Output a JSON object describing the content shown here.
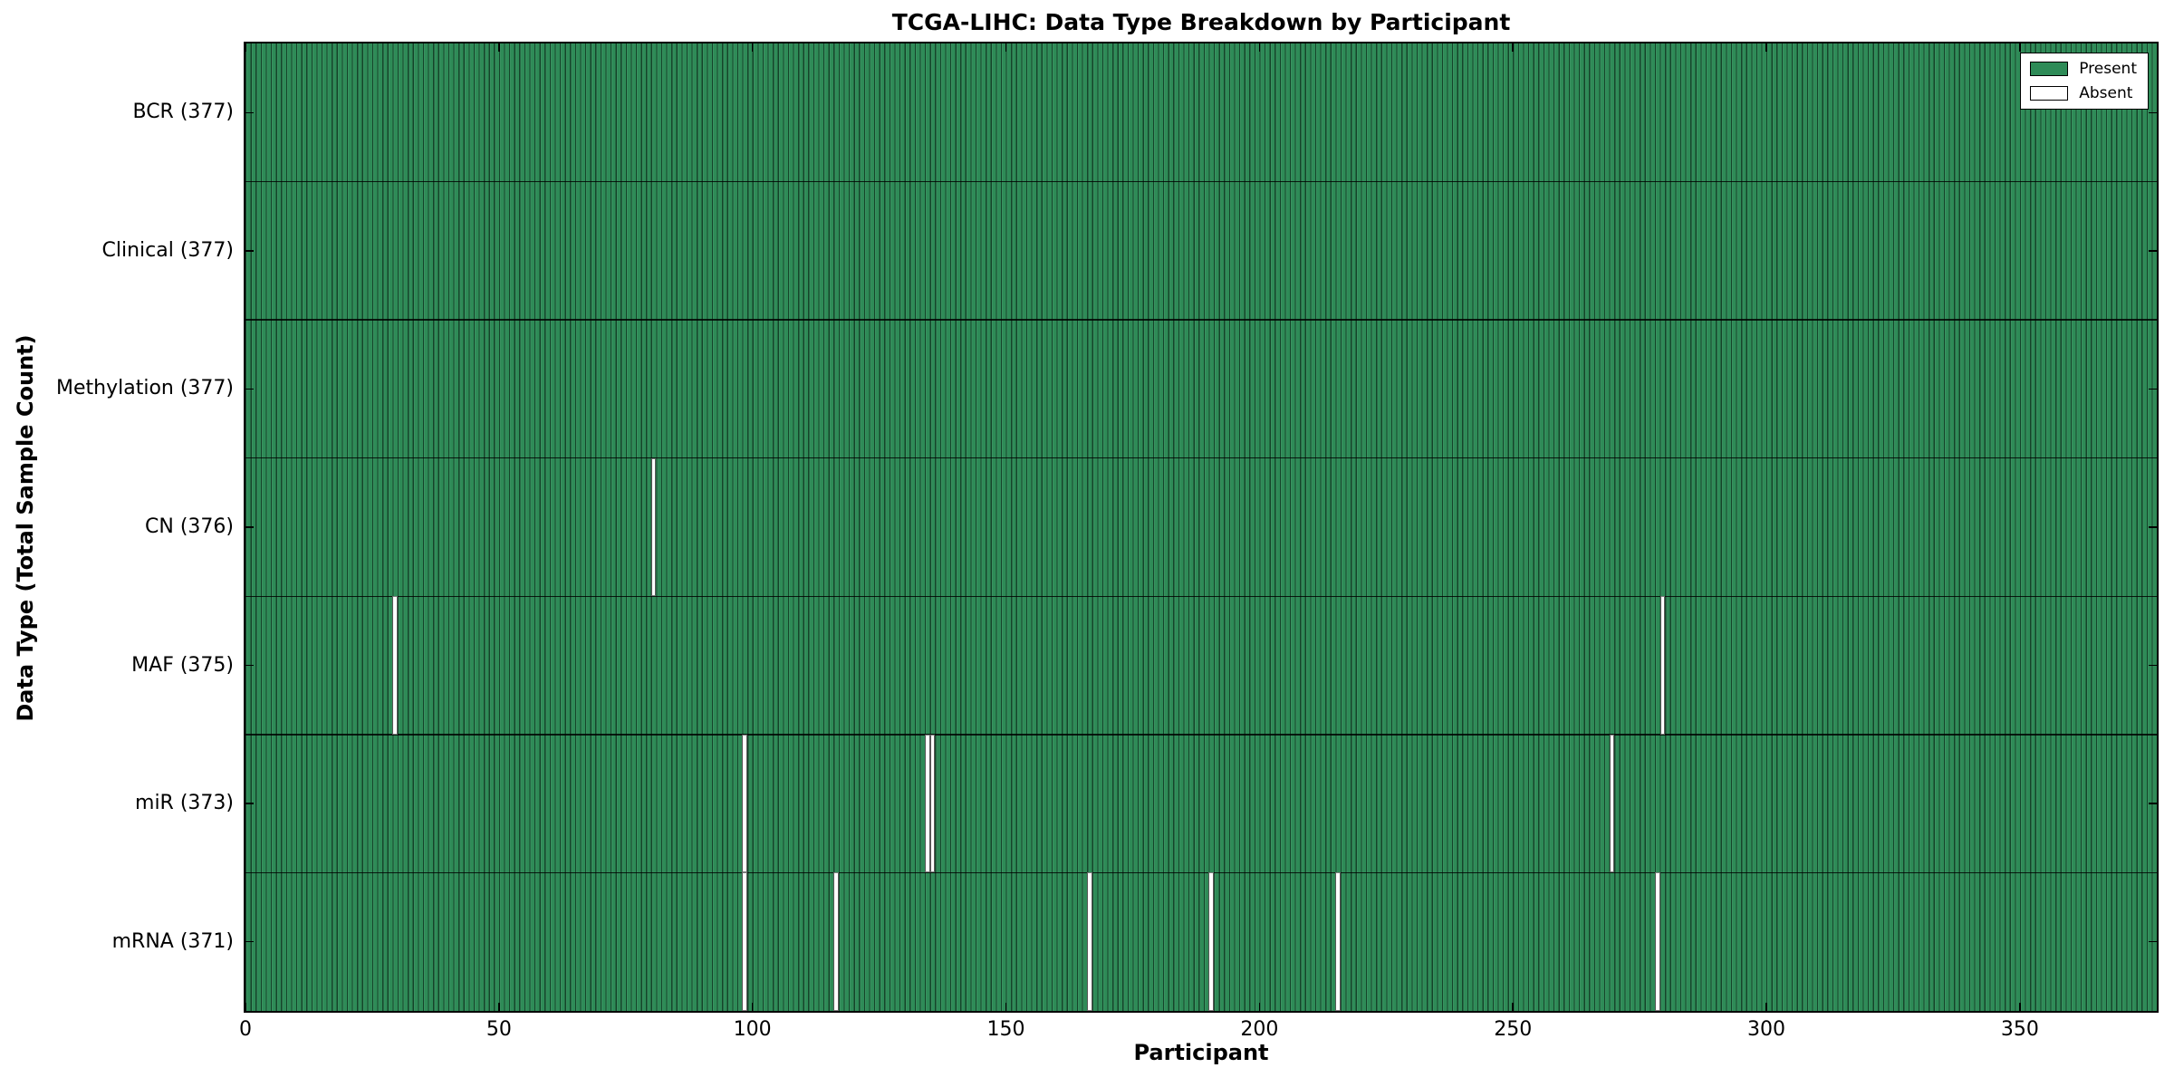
{
  "title": "TCGA-LIHC: Data Type Breakdown by Participant",
  "xlabel": "Participant",
  "ylabel": "Data Type (Total Sample Count)",
  "colors": {
    "present": "#2e8b57",
    "absent": "#ffffff",
    "edge": "#000000",
    "background": "#ffffff"
  },
  "chart_data": {
    "type": "heatmap",
    "title": "TCGA-LIHC: Data Type Breakdown by Participant",
    "xlabel": "Participant",
    "ylabel": "Data Type (Total Sample Count)",
    "n_participants": 377,
    "xlim": [
      0,
      377
    ],
    "x_ticks": [
      0,
      50,
      100,
      150,
      200,
      250,
      300,
      350
    ],
    "grid": false,
    "legend_position": "upper right",
    "legend": [
      {
        "label": "Present",
        "color": "#2e8b57"
      },
      {
        "label": "Absent",
        "color": "#ffffff"
      }
    ],
    "rows": [
      {
        "label": "BCR (377)",
        "name": "BCR",
        "total_samples": 377,
        "absent_participants": []
      },
      {
        "label": "Clinical (377)",
        "name": "Clinical",
        "total_samples": 377,
        "absent_participants": []
      },
      {
        "label": "Methylation (377)",
        "name": "Methylation",
        "total_samples": 377,
        "absent_participants": []
      },
      {
        "label": "CN (376)",
        "name": "CN",
        "total_samples": 376,
        "absent_participants": [
          80
        ]
      },
      {
        "label": "MAF (375)",
        "name": "MAF",
        "total_samples": 375,
        "absent_participants": [
          29,
          279
        ]
      },
      {
        "label": "miR (373)",
        "name": "miR",
        "total_samples": 373,
        "absent_participants": [
          98,
          134,
          135,
          269
        ]
      },
      {
        "label": "mRNA (371)",
        "name": "mRNA",
        "total_samples": 371,
        "absent_participants": [
          98,
          116,
          166,
          190,
          215,
          278
        ]
      }
    ]
  }
}
